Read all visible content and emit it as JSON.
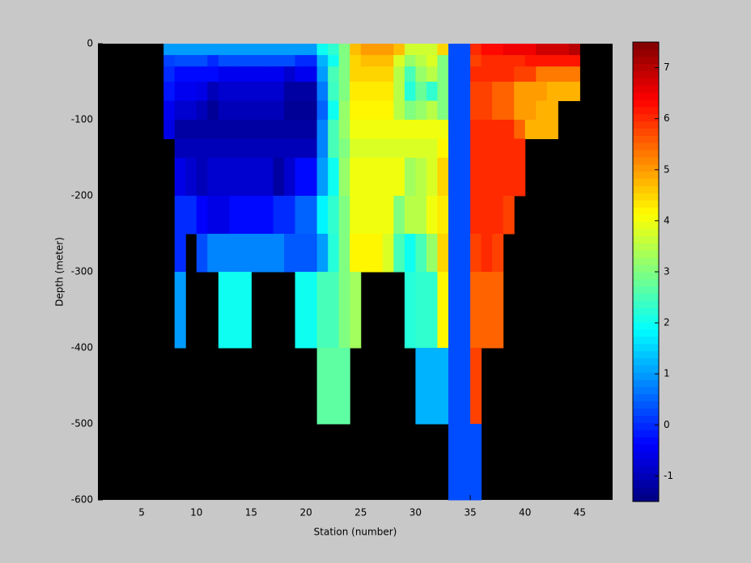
{
  "chart_data": {
    "type": "heatmap",
    "xlabel": "Station (number)",
    "ylabel": "Depth (meter)",
    "xlim": [
      1,
      48
    ],
    "ylim": [
      -600,
      0
    ],
    "xticks": [
      5,
      10,
      15,
      20,
      25,
      30,
      35,
      40,
      45
    ],
    "yticks": [
      -600,
      -500,
      -400,
      -300,
      -200,
      -100,
      0
    ],
    "colormap": "jet",
    "clim": [
      -1.5,
      7.5
    ],
    "colorbar_ticks": [
      -1,
      0,
      1,
      2,
      3,
      4,
      5,
      6,
      7
    ],
    "x_edges": [
      7,
      8,
      9,
      10,
      11,
      12,
      13,
      14,
      15,
      16,
      17,
      18,
      19,
      20,
      21,
      22,
      23,
      24,
      25,
      26,
      27,
      28,
      29,
      30,
      31,
      32,
      33,
      34,
      35,
      36,
      37,
      38,
      39,
      40,
      41,
      42,
      43,
      44,
      45
    ],
    "y_edges": [
      0,
      -15,
      -30,
      -50,
      -75,
      -100,
      -125,
      -150,
      -200,
      -250,
      -300,
      -400,
      -500,
      -600
    ],
    "values": [
      [
        1.0,
        1.0,
        1.0,
        1.0,
        1.0,
        1.0,
        1.0,
        1.0,
        1.0,
        1.0,
        1.0,
        1.0,
        1.0,
        1.0,
        2.0,
        2.3,
        3.0,
        4.7,
        5.0,
        5.0,
        5.0,
        4.7,
        3.7,
        3.7,
        3.7,
        4.5,
        0.3,
        0.3,
        6.0,
        6.3,
        6.3,
        6.5,
        6.5,
        6.5,
        6.8,
        6.8,
        6.8,
        7.0
      ],
      [
        0.2,
        0.3,
        0.3,
        0.3,
        0.0,
        0.3,
        0.3,
        0.3,
        0.3,
        0.3,
        0.3,
        0.3,
        0.0,
        0.0,
        1.2,
        2.0,
        3.0,
        4.5,
        4.7,
        4.7,
        4.7,
        3.8,
        3.2,
        3.5,
        3.8,
        3.0,
        0.3,
        0.3,
        5.8,
        6.0,
        6.0,
        6.0,
        6.0,
        6.2,
        6.2,
        6.2,
        6.2,
        6.2
      ],
      [
        0.0,
        -0.3,
        -0.3,
        -0.3,
        -0.3,
        -0.5,
        -0.5,
        -0.5,
        -0.5,
        -0.5,
        -0.5,
        -0.8,
        -0.5,
        -0.5,
        1.0,
        2.5,
        3.0,
        4.5,
        4.5,
        4.5,
        4.5,
        3.5,
        2.5,
        3.2,
        3.5,
        3.0,
        0.3,
        0.3,
        6.0,
        6.0,
        6.0,
        6.0,
        5.8,
        5.8,
        5.3,
        5.3,
        5.3,
        5.3
      ],
      [
        -0.2,
        -0.5,
        -0.5,
        -0.6,
        -1.0,
        -0.8,
        -0.8,
        -0.8,
        -0.8,
        -0.8,
        -0.8,
        -1.2,
        -1.2,
        -1.2,
        0.7,
        2.4,
        3.0,
        4.3,
        4.3,
        4.3,
        4.3,
        3.5,
        2.2,
        2.8,
        2.3,
        3.0,
        0.3,
        0.3,
        5.8,
        5.8,
        5.5,
        5.5,
        5.0,
        5.0,
        5.0,
        4.8,
        4.8,
        4.8
      ],
      [
        -0.5,
        -0.8,
        -0.8,
        -1.0,
        -1.3,
        -1.0,
        -1.0,
        -1.0,
        -1.0,
        -1.0,
        -1.0,
        -1.3,
        -1.3,
        -1.3,
        0.5,
        2.0,
        3.2,
        4.2,
        4.2,
        4.2,
        4.2,
        3.5,
        3.0,
        3.2,
        3.5,
        3.0,
        0.3,
        0.3,
        5.8,
        5.8,
        5.5,
        5.5,
        5.0,
        5.0,
        4.8,
        4.8,
        null,
        null
      ],
      [
        -0.6,
        -1.2,
        -1.2,
        -1.2,
        -1.2,
        -1.2,
        -1.2,
        -1.2,
        -1.2,
        -1.2,
        -1.2,
        -1.2,
        -1.2,
        -1.2,
        0.8,
        2.5,
        3.2,
        4.0,
        4.0,
        4.0,
        4.0,
        4.0,
        4.0,
        4.0,
        4.0,
        4.0,
        0.3,
        0.3,
        6.0,
        6.0,
        6.0,
        6.0,
        5.5,
        4.8,
        4.8,
        4.8,
        null,
        null
      ],
      [
        null,
        -1.0,
        -1.0,
        -1.0,
        -1.0,
        -1.0,
        -1.0,
        -1.0,
        -1.0,
        -1.0,
        -1.0,
        -1.0,
        -1.0,
        -1.0,
        0.8,
        2.5,
        3.0,
        3.8,
        3.8,
        3.8,
        3.8,
        3.8,
        3.8,
        3.8,
        3.8,
        4.2,
        0.3,
        0.3,
        6.0,
        6.0,
        6.0,
        6.0,
        6.0,
        null,
        null,
        null,
        null,
        null
      ],
      [
        null,
        -0.6,
        -0.8,
        -1.0,
        -0.8,
        -0.8,
        -0.8,
        -0.8,
        -0.8,
        -0.8,
        -1.2,
        -0.8,
        -0.3,
        -0.3,
        1.0,
        2.0,
        3.2,
        4.0,
        4.0,
        4.0,
        4.0,
        4.0,
        3.3,
        3.5,
        3.8,
        4.5,
        0.3,
        0.3,
        6.0,
        6.0,
        6.0,
        6.0,
        6.0,
        null,
        null,
        null,
        null,
        null
      ],
      [
        null,
        0.0,
        0.0,
        -0.4,
        -0.6,
        -0.6,
        -0.3,
        -0.3,
        -0.3,
        -0.3,
        0.0,
        0.0,
        0.5,
        0.5,
        1.8,
        2.3,
        3.0,
        4.0,
        4.0,
        4.0,
        4.0,
        3.0,
        3.5,
        3.5,
        4.0,
        4.3,
        0.3,
        0.3,
        6.0,
        6.0,
        6.0,
        5.8,
        null,
        null,
        null,
        null,
        null,
        null
      ],
      [
        null,
        0.0,
        null,
        0.3,
        0.8,
        0.8,
        0.8,
        0.8,
        0.8,
        0.8,
        0.8,
        0.4,
        0.4,
        0.4,
        1.0,
        2.2,
        3.0,
        4.2,
        4.2,
        4.2,
        3.8,
        2.5,
        2.0,
        2.5,
        3.2,
        4.5,
        0.3,
        0.3,
        5.8,
        6.0,
        5.8,
        null,
        null,
        null,
        null,
        null,
        null,
        null
      ],
      [
        null,
        1.0,
        null,
        null,
        null,
        2.0,
        2.0,
        2.0,
        null,
        null,
        null,
        null,
        2.0,
        2.0,
        2.5,
        2.5,
        3.0,
        3.3,
        null,
        null,
        null,
        null,
        2.2,
        2.3,
        2.3,
        4.2,
        0.3,
        0.3,
        5.5,
        5.5,
        5.5,
        null,
        null,
        null,
        null,
        null,
        null,
        null
      ],
      [
        null,
        null,
        null,
        null,
        null,
        null,
        null,
        null,
        null,
        null,
        null,
        null,
        null,
        null,
        2.7,
        2.7,
        2.7,
        null,
        null,
        null,
        null,
        null,
        null,
        1.2,
        1.2,
        1.2,
        0.3,
        0.3,
        5.8,
        null,
        null,
        null,
        null,
        null,
        null,
        null,
        null,
        null
      ],
      [
        null,
        null,
        null,
        null,
        null,
        null,
        null,
        null,
        null,
        null,
        null,
        null,
        null,
        null,
        null,
        null,
        null,
        null,
        null,
        null,
        null,
        null,
        null,
        null,
        null,
        null,
        0.3,
        0.3,
        0.3,
        null,
        null,
        null,
        null,
        null,
        null,
        null,
        null,
        null
      ]
    ]
  }
}
